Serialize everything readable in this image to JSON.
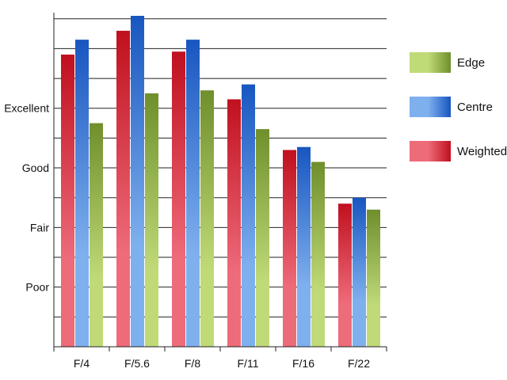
{
  "chart_data": {
    "type": "bar",
    "title": "",
    "xlabel": "",
    "ylabel": "",
    "categories": [
      "F/4",
      "F/5.6",
      "F/8",
      "F/11",
      "F/16",
      "F/22"
    ],
    "series": [
      {
        "name": "Weighted",
        "values": [
          9.8,
          10.6,
          9.9,
          8.3,
          6.6,
          4.8
        ],
        "color_light": "#ee6b7a",
        "color_dark": "#c0101e"
      },
      {
        "name": "Centre",
        "values": [
          10.3,
          11.1,
          10.3,
          8.8,
          6.7,
          5.0
        ],
        "color_light": "#7fb0ee",
        "color_dark": "#1856c0"
      },
      {
        "name": "Edge",
        "values": [
          7.5,
          8.5,
          8.6,
          7.3,
          6.2,
          4.6
        ],
        "color_light": "#c0da78",
        "color_dark": "#6f8f2c"
      }
    ],
    "legend_order": [
      "Edge",
      "Centre",
      "Weighted"
    ],
    "legend_position": "right",
    "ylim": [
      0,
      11.1
    ],
    "y_gridlines": [
      1,
      2,
      3,
      4,
      5,
      6,
      7,
      8,
      9,
      10,
      11
    ],
    "y_tick_labels": [
      {
        "label": "Poor",
        "value": 2
      },
      {
        "label": "Fair",
        "value": 4
      },
      {
        "label": "Good",
        "value": 6
      },
      {
        "label": "Excellent",
        "value": 8
      }
    ],
    "grid": true
  }
}
